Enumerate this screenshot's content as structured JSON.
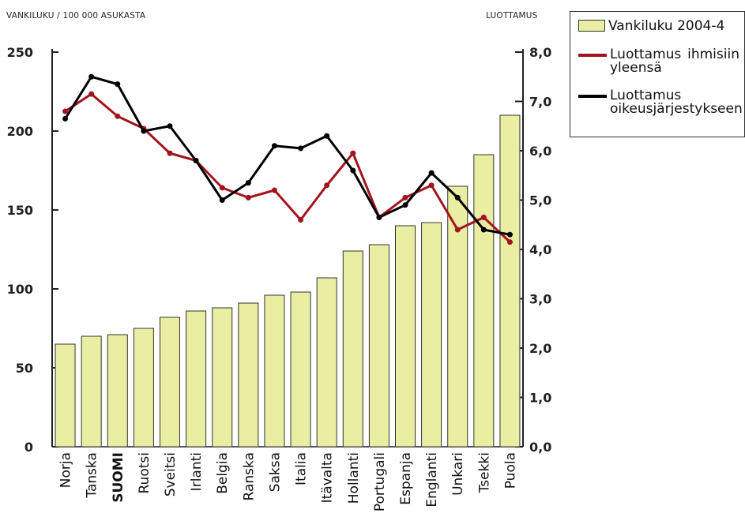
{
  "y_left_title": "VANKILUKU / 100 000 ASUKASTA",
  "y_right_title": "LUOTTAMUS",
  "legend": [
    {
      "label": "Vankiluku 2004-4",
      "kind": "bar",
      "color": "#e9eea3"
    },
    {
      "label": "Luottamus ihmisiin yleensä",
      "kind": "line",
      "color": "#a3151e"
    },
    {
      "label": "Luottamus oikeusjärjestykseen",
      "kind": "line",
      "color": "#000000"
    }
  ],
  "chart_data": {
    "type": "bar",
    "categories": [
      "Norja",
      "Tanska",
      "SUOMI",
      "Ruotsi",
      "Sveitsi",
      "Irlanti",
      "Belgia",
      "Ranska",
      "Saksa",
      "Italia",
      "Itävalta",
      "Hollanti",
      "Portugali",
      "Espanja",
      "Englanti",
      "Unkari",
      "Tsekki",
      "Puola"
    ],
    "highlight_category": "SUOMI",
    "bar_series": {
      "name": "Vankiluku 2004-4",
      "axis": "left",
      "color": "#e9eea3",
      "values": [
        65,
        70,
        71,
        75,
        82,
        86,
        88,
        91,
        96,
        98,
        107,
        124,
        128,
        140,
        142,
        165,
        185,
        210
      ]
    },
    "line_series": [
      {
        "name": "Luottamus ihmisiin yleensä",
        "axis": "right",
        "color": "#a3151e",
        "values": [
          6.8,
          7.15,
          6.7,
          6.45,
          5.95,
          5.8,
          5.25,
          5.05,
          5.2,
          4.6,
          5.3,
          5.95,
          4.65,
          5.05,
          5.3,
          4.4,
          4.65,
          4.15
        ]
      },
      {
        "name": "Luottamus oikeusjärjestykseen",
        "axis": "right",
        "color": "#000000",
        "values": [
          6.65,
          7.5,
          7.35,
          6.4,
          6.5,
          5.8,
          5.0,
          5.35,
          6.1,
          6.05,
          6.3,
          5.6,
          4.65,
          4.9,
          5.55,
          5.05,
          4.4,
          4.3
        ]
      }
    ],
    "y_left": {
      "min": 0,
      "max": 250,
      "ticks": [
        "0",
        "50",
        "100",
        "150",
        "200",
        "250"
      ]
    },
    "y_right": {
      "min": 0,
      "max": 8,
      "ticks": [
        "0,0",
        "1,0",
        "2,0",
        "3,0",
        "4,0",
        "5,0",
        "6,0",
        "7,0",
        "8,0"
      ]
    },
    "grid": false,
    "legend_position": "top-right"
  }
}
